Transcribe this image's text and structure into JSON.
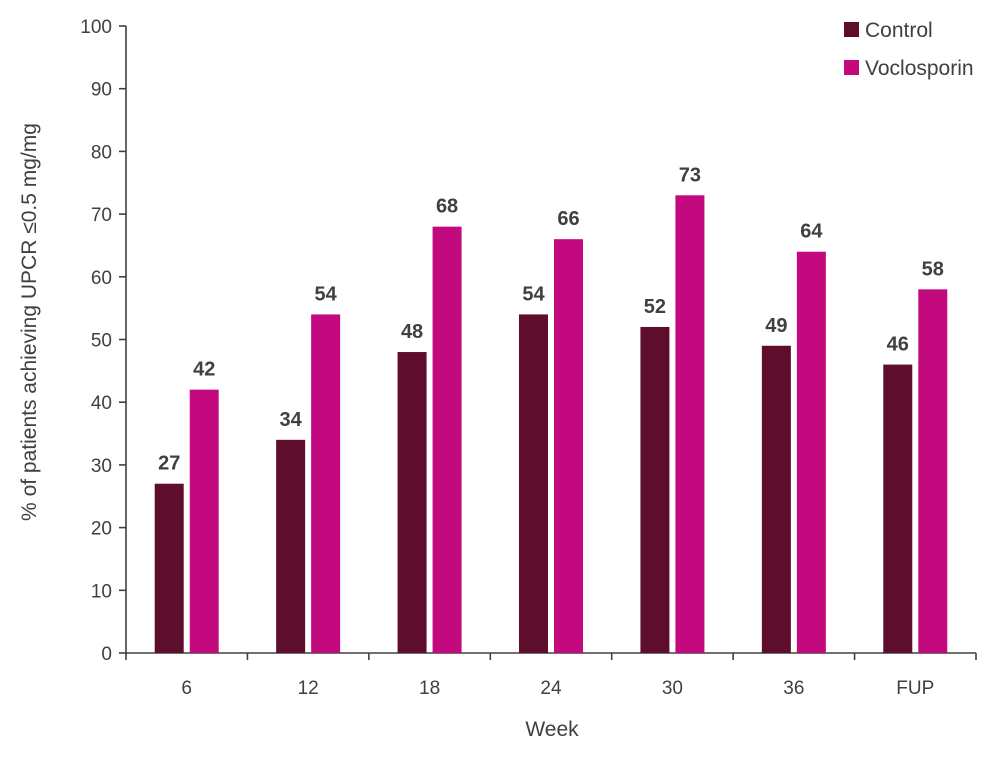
{
  "chart_data": {
    "type": "bar",
    "categories": [
      "6",
      "12",
      "18",
      "24",
      "30",
      "36",
      "FUP"
    ],
    "series": [
      {
        "name": "Control",
        "values": [
          27,
          34,
          48,
          54,
          52,
          49,
          46
        ],
        "color": "#5e0e2c"
      },
      {
        "name": "Voclosporin",
        "values": [
          42,
          54,
          68,
          66,
          73,
          64,
          58
        ],
        "color": "#c20a7e"
      }
    ],
    "xlabel": "Week",
    "ylabel": "% of patients achieving UPCR ≤0.5 mg/mg",
    "ylim": [
      0,
      100
    ],
    "yticks": [
      0,
      10,
      20,
      30,
      40,
      50,
      60,
      70,
      80,
      90,
      100
    ],
    "grid": false,
    "legend_position": "top-right",
    "data_labels": true
  }
}
